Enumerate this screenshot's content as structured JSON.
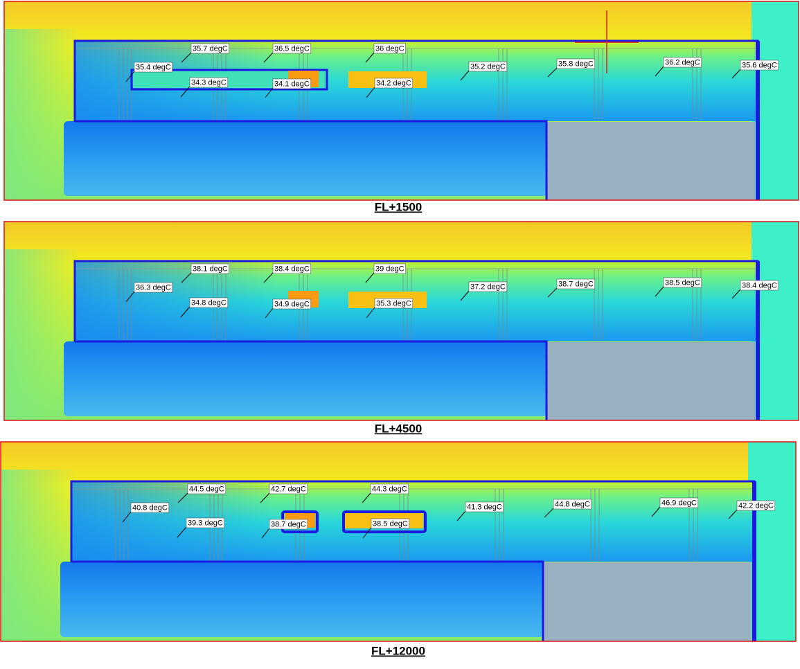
{
  "panels": [
    {
      "caption": "FL+1500",
      "probes": [
        "35.7 degC",
        "36.5 degC",
        "36 degC",
        "35.4 degC",
        "34.3 degC",
        "34.1 degC",
        "34.2 degC",
        "35.2 degC",
        "35.8 degC",
        "36.2 degC",
        "35.6 degC"
      ]
    },
    {
      "caption": "FL+4500",
      "probes": [
        "38.1 degC",
        "38.4 degC",
        "39 degC",
        "36.3 degC",
        "34.8 degC",
        "34.9 degC",
        "35.3 degC",
        "37.2 degC",
        "38.7 degC",
        "38.5 degC",
        "38.4 degC"
      ]
    },
    {
      "caption": "FL+12000",
      "probes": [
        "44.5 degC",
        "42.7 degC",
        "44.3 degC",
        "40.8 degC",
        "39.3 degC",
        "38.7 degC",
        "38.5 degC",
        "41.3 degC",
        "44.8 degC",
        "46.9 degC",
        "42.2 degC"
      ]
    }
  ]
}
